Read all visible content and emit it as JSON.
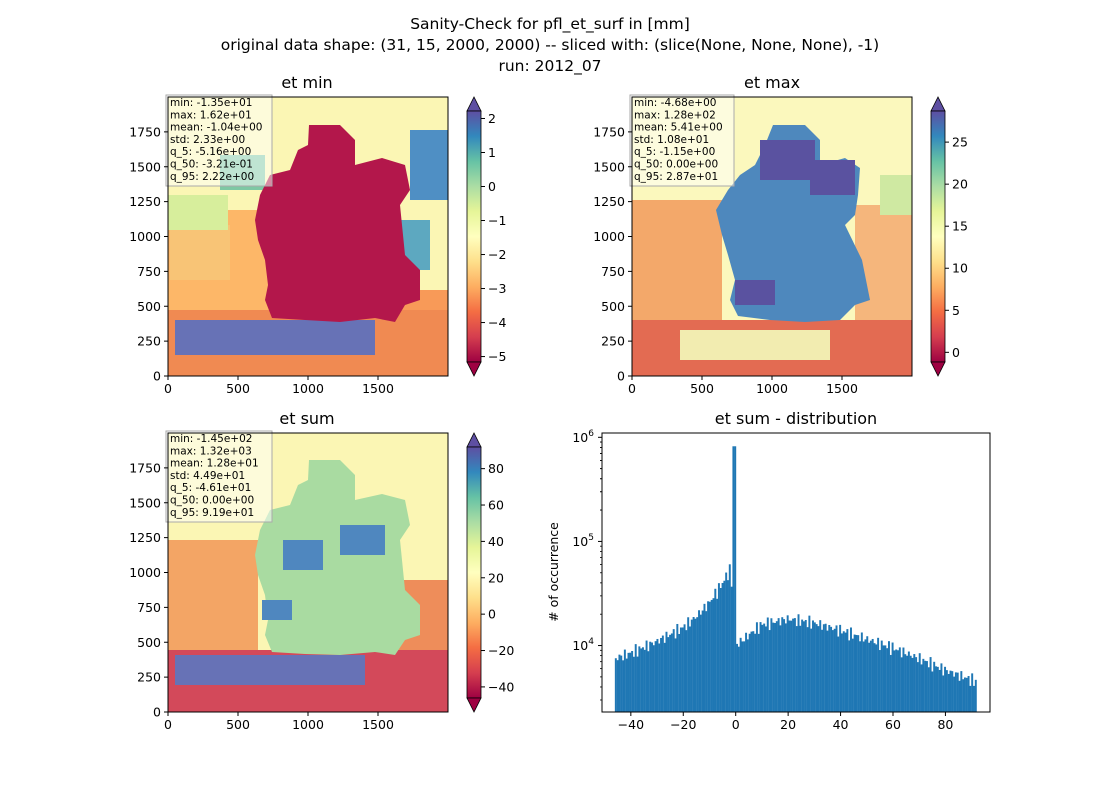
{
  "figure": {
    "suptitle": [
      "Sanity-Check for pfl_et_surf in [mm]",
      "original data shape: (31, 15, 2000, 2000) -- sliced with: (slice(None, None, None), -1)",
      "run: 2012_07"
    ]
  },
  "chart_data": [
    {
      "type": "heatmap",
      "title": "et min",
      "xlim": [
        0,
        2000
      ],
      "ylim": [
        0,
        2000
      ],
      "x_ticks": [
        "0",
        "500",
        "1000",
        "1500"
      ],
      "y_ticks": [
        "0",
        "250",
        "500",
        "750",
        "1000",
        "1250",
        "1500",
        "1750"
      ],
      "colormap": "Spectral",
      "colorbar": {
        "range": [
          -5.16,
          2.22
        ],
        "extend": "both",
        "ticks": [
          "−5",
          "−4",
          "−3",
          "−2",
          "−1",
          "0",
          "1",
          "2"
        ]
      },
      "stats": [
        "min: -1.35e+01",
        "max: 1.62e+01",
        "mean: -1.04e+00",
        "std: 2.33e+00",
        "q_5: -5.16e+00",
        "q_50: -3.21e-01",
        "q_95: 2.22e+00"
      ]
    },
    {
      "type": "heatmap",
      "title": "et max",
      "xlim": [
        0,
        2000
      ],
      "ylim": [
        0,
        2000
      ],
      "x_ticks": [
        "0",
        "500",
        "1000",
        "1500"
      ],
      "y_ticks": [
        "0",
        "250",
        "500",
        "750",
        "1000",
        "1250",
        "1500",
        "1750"
      ],
      "colormap": "Spectral",
      "colorbar": {
        "range": [
          -1.15,
          28.7
        ],
        "extend": "both",
        "ticks": [
          "0",
          "5",
          "10",
          "15",
          "20",
          "25"
        ]
      },
      "stats": [
        "min: -4.68e+00",
        "max: 1.28e+02",
        "mean: 5.41e+00",
        "std: 1.08e+01",
        "q_5: -1.15e+00",
        "q_50: 0.00e+00",
        "q_95: 2.87e+01"
      ]
    },
    {
      "type": "heatmap",
      "title": "et sum",
      "xlim": [
        0,
        2000
      ],
      "ylim": [
        0,
        2000
      ],
      "x_ticks": [
        "0",
        "500",
        "1000",
        "1500"
      ],
      "y_ticks": [
        "0",
        "250",
        "500",
        "750",
        "1000",
        "1250",
        "1500",
        "1750"
      ],
      "colormap": "Spectral",
      "colorbar": {
        "range": [
          -46.1,
          91.9
        ],
        "extend": "both",
        "ticks": [
          "−40",
          "−20",
          "0",
          "20",
          "40",
          "60",
          "80"
        ]
      },
      "stats": [
        "min: -1.45e+02",
        "max: 1.32e+03",
        "mean: 1.28e+01",
        "std: 4.49e+01",
        "q_5: -4.61e+01",
        "q_50: 0.00e+00",
        "q_95: 9.19e+01"
      ]
    },
    {
      "type": "bar",
      "title": "et sum - distribution",
      "ylabel": "# of occurrence",
      "xlim": [
        -51,
        97
      ],
      "ylim": [
        2300,
        1100000
      ],
      "yscale": "log",
      "x_ticks": [
        "−40",
        "−20",
        "0",
        "20",
        "40",
        "60",
        "80"
      ],
      "y_ticks": [
        "10^4",
        "10^5",
        "10^6"
      ],
      "bin_range": [
        -46.1,
        91.9
      ],
      "bins": 200,
      "color": "#1f77b4",
      "peak": {
        "x": -0.4,
        "count": 820000
      },
      "shape_points": [
        {
          "x": -46.1,
          "count": 7500
        },
        {
          "x": -40,
          "count": 8500
        },
        {
          "x": -30,
          "count": 11000
        },
        {
          "x": -20,
          "count": 15000
        },
        {
          "x": -15,
          "count": 19000
        },
        {
          "x": -10,
          "count": 26000
        },
        {
          "x": -5,
          "count": 40000
        },
        {
          "x": -2,
          "count": 55000
        },
        {
          "x": 0,
          "count": 10000
        },
        {
          "x": 10,
          "count": 16000
        },
        {
          "x": 20,
          "count": 18000
        },
        {
          "x": 30,
          "count": 16500
        },
        {
          "x": 40,
          "count": 14000
        },
        {
          "x": 50,
          "count": 11500
        },
        {
          "x": 60,
          "count": 9500
        },
        {
          "x": 70,
          "count": 7500
        },
        {
          "x": 80,
          "count": 5800
        },
        {
          "x": 91.9,
          "count": 4500
        }
      ]
    }
  ]
}
